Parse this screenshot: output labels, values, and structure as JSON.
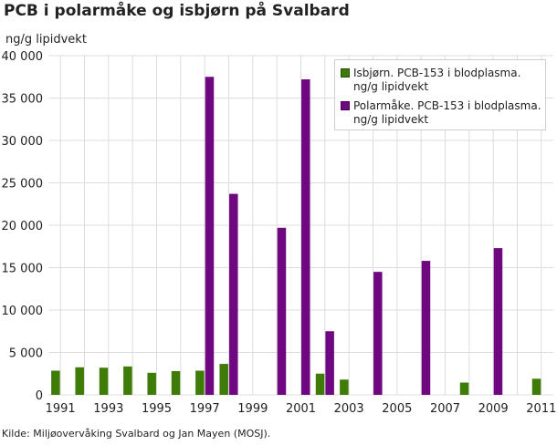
{
  "title": "PCB i polarmåke og isbjørn på Svalbard",
  "source": "Kilde: Miljøovervåking Svalbard og Jan Mayen (MOSJ).",
  "chart_data": {
    "type": "bar",
    "ylabel": "ng/g lipidvekt",
    "ylim": [
      0,
      40000
    ],
    "yticks": [
      0,
      5000,
      10000,
      15000,
      20000,
      25000,
      30000,
      35000,
      40000
    ],
    "ytick_labels": [
      "0",
      "5 000",
      "10 000",
      "15 000",
      "20 000",
      "25 000",
      "30 000",
      "35 000",
      "40 000"
    ],
    "xlim": [
      1990.5,
      2011.5
    ],
    "xticks": [
      1991,
      1993,
      1995,
      1997,
      1999,
      2001,
      2003,
      2005,
      2007,
      2009,
      2011
    ],
    "xtick_labels": [
      "1991",
      "1993",
      "1995",
      "1997",
      "1999",
      "2001",
      "2003",
      "2005",
      "2007",
      "2009",
      "2011"
    ],
    "grid": true,
    "legend_position": "top-right",
    "series": [
      {
        "name": "Isbjørn. PCB-153 i blodplasma. ng/g lipidvekt",
        "name_lines": [
          "Isbjørn. PCB-153 i blodplasma.",
          "ng/g lipidvekt"
        ],
        "color": "#3e7c07",
        "x": [
          1991,
          1992,
          1993,
          1994,
          1995,
          1996,
          1997,
          1998,
          2002,
          2003,
          2008,
          2011
        ],
        "values": [
          2850,
          3250,
          3200,
          3350,
          2600,
          2800,
          2850,
          3650,
          2500,
          1800,
          1450,
          1900
        ]
      },
      {
        "name": "Polarmåke. PCB-153 i blodplasma. ng/g lipidvekt",
        "name_lines": [
          "Polarmåke. PCB-153 i blodplasma.",
          "ng/g lipidvekt"
        ],
        "color": "#6e0780",
        "x": [
          1997,
          1998,
          2000,
          2001,
          2002,
          2004,
          2006,
          2009
        ],
        "values": [
          37500,
          23700,
          19700,
          37200,
          7500,
          14500,
          15800,
          17300
        ]
      }
    ]
  }
}
